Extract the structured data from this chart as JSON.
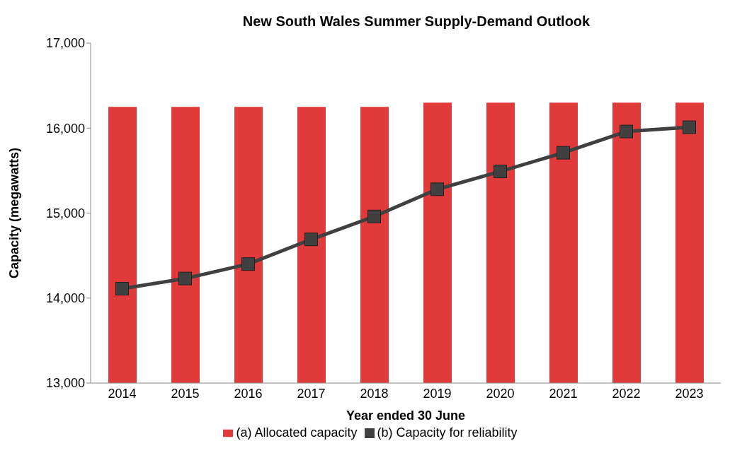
{
  "chart_data": {
    "type": "bar",
    "title": "New South Wales Summer Supply-Demand Outlook",
    "xlabel": "Year ended 30 June",
    "ylabel": "Capacity (megawatts)",
    "categories": [
      "2014",
      "2015",
      "2016",
      "2017",
      "2018",
      "2019",
      "2020",
      "2021",
      "2022",
      "2023"
    ],
    "series": [
      {
        "name": "(a) Allocated capacity",
        "color": "#e03a3a",
        "values": [
          16250,
          16250,
          16250,
          16250,
          16250,
          16300,
          16300,
          16300,
          16300,
          16300
        ]
      },
      {
        "name": "(b) Capacity for reliability",
        "type": "line",
        "color": "#404040",
        "marker": "square",
        "values": [
          14110,
          14230,
          14400,
          14690,
          14960,
          15280,
          15490,
          15710,
          15960,
          16010
        ]
      }
    ],
    "ylim": [
      13000,
      17000
    ],
    "yticks": [
      {
        "value": 13000,
        "label": "13,000"
      },
      {
        "value": 14000,
        "label": "14,000"
      },
      {
        "value": 15000,
        "label": "15,000"
      },
      {
        "value": 16000,
        "label": "16,000"
      },
      {
        "value": 17000,
        "label": "17,000"
      }
    ],
    "grid": false,
    "legend": "bottom"
  }
}
